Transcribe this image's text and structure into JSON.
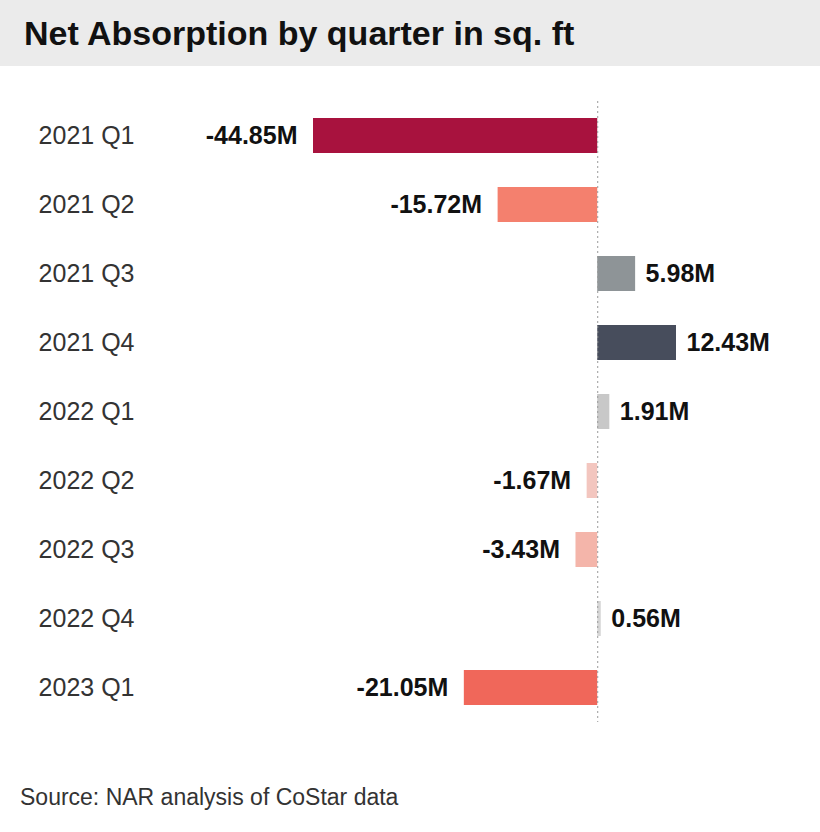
{
  "chart_data": {
    "type": "bar",
    "title": "Net Absorption by quarter in sq. ft",
    "caption": "Source: NAR analysis of CoStar data",
    "orientation": "horizontal",
    "categories": [
      "2021 Q1",
      "2021 Q2",
      "2021 Q3",
      "2021 Q4",
      "2022 Q1",
      "2022 Q2",
      "2022 Q3",
      "2022 Q4",
      "2023 Q1"
    ],
    "values": [
      -44.85,
      -15.72,
      5.98,
      12.43,
      1.91,
      -1.67,
      -3.43,
      0.56,
      -21.05
    ],
    "value_labels": [
      "-44.85M",
      "-15.72M",
      "5.98M",
      "12.43M",
      "1.91M",
      "-1.67M",
      "-3.43M",
      "0.56M",
      "-21.05M"
    ],
    "colors": [
      "#a8123e",
      "#f4806e",
      "#8e9497",
      "#474d5c",
      "#c8c8c8",
      "#f3c6bf",
      "#f4b5aa",
      "#d6d6d6",
      "#f0675a"
    ],
    "data_labels": true,
    "tick_labels": "y",
    "grid": false
  }
}
